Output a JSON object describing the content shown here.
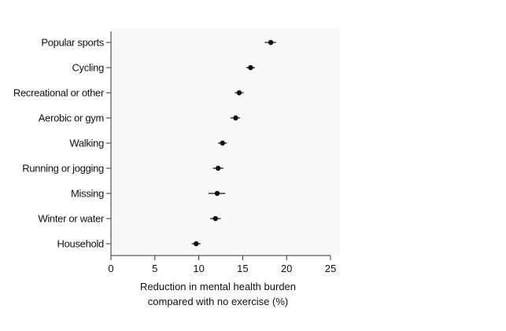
{
  "chart_data": {
    "type": "scatter",
    "subtype": "dot-with-error-bars",
    "orientation": "horizontal",
    "categories": [
      "Popular sports",
      "Cycling",
      "Recreational or other",
      "Aerobic or gym",
      "Walking",
      "Running or jogging",
      "Missing",
      "Winter or water",
      "Household"
    ],
    "series": [
      {
        "values": [
          18.2,
          15.9,
          14.6,
          14.2,
          12.7,
          12.2,
          12.1,
          11.9,
          9.7
        ],
        "ci_lower": [
          17.5,
          15.4,
          14.1,
          13.6,
          12.2,
          11.6,
          11.1,
          11.3,
          9.2
        ],
        "ci_upper": [
          18.8,
          16.4,
          15.1,
          14.7,
          13.2,
          12.8,
          13.0,
          12.5,
          10.2
        ]
      }
    ],
    "xlabel_line1": "Reduction in mental health burden",
    "xlabel_line2": "compared with no exercise (%)",
    "xlim": [
      0,
      25
    ],
    "xticks": [
      "0",
      "5",
      "10",
      "15",
      "20",
      "25"
    ],
    "xtick_values": [
      0,
      5,
      10,
      15,
      20,
      25
    ],
    "grid": false,
    "colors": {
      "marker": "#111111",
      "axis": "#333333",
      "plot_background": "#f8f8f8"
    }
  }
}
